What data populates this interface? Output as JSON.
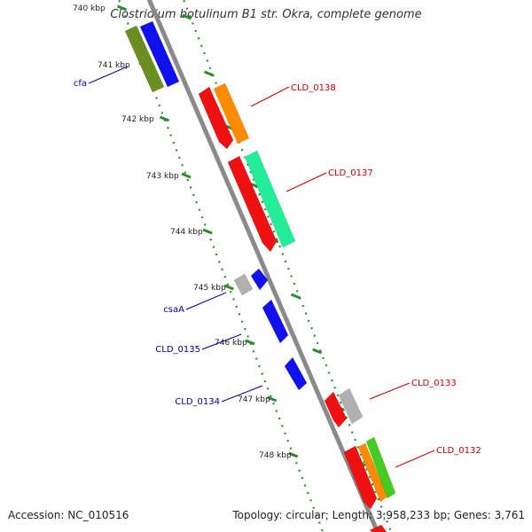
{
  "title": "Clostridium botulinum B1 str. Okra, complete genome",
  "footer": {
    "accession": "Accession: NC_010516",
    "topology": "Topology: circular; Length: 3,958,233 bp; Genes: 3,761"
  },
  "ticks": [
    "740 kbp",
    "741 kbp",
    "742 kbp",
    "743 kbp",
    "744 kbp",
    "745 kbp",
    "746 kbp",
    "747 kbp",
    "748 kbp"
  ],
  "labels": {
    "forward": [
      "CLD_0138",
      "CLD_0137",
      "CLD_0133",
      "CLD_0132"
    ],
    "reverse": [
      "cfa",
      "csaA",
      "CLD_0135",
      "CLD_0134"
    ]
  },
  "colors": {
    "forward_label": "#cc0000",
    "reverse_label": "#000099",
    "backbone": "#8a8a8a",
    "tick": "#2e8b2e",
    "red": "#ee1111",
    "orange": "#ff8c00",
    "teal": "#22ee99",
    "silver": "#b0b0b0",
    "blue": "#1111ee",
    "olive": "#6b8e23",
    "green": "#44cc22"
  }
}
